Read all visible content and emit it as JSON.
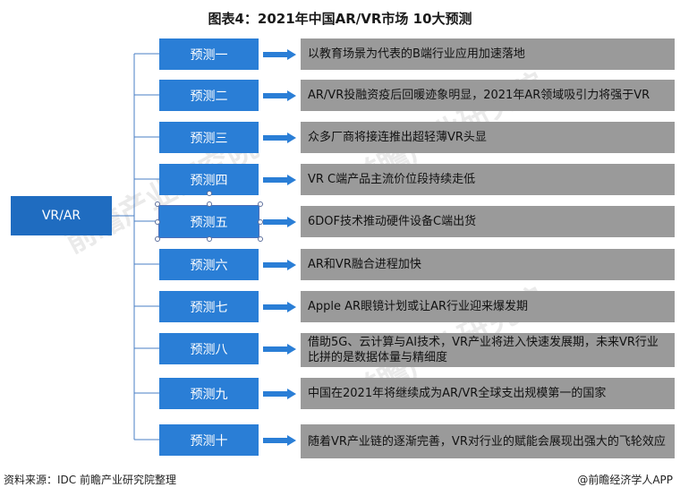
{
  "title": "图表4：2021年中国AR/VR市场 10大预测",
  "root": {
    "label": "VR/AR"
  },
  "predictions": [
    {
      "label": "预测一",
      "text": "以教育场景为代表的B端行业应用加速落地"
    },
    {
      "label": "预测二",
      "text": "AR/VR投融资疫后回暖迹象明显，2021年AR领域吸引力将强于VR"
    },
    {
      "label": "预测三",
      "text": "众多厂商将接连推出超轻薄VR头显"
    },
    {
      "label": "预测四",
      "text": "VR C端产品主流价位段持续走低"
    },
    {
      "label": "预测五",
      "text": "6DOF技术推动硬件设备C端出货"
    },
    {
      "label": "预测六",
      "text": "AR和VR融合进程加快"
    },
    {
      "label": "预测七",
      "text": "Apple AR眼镜计划或让AR行业迎来爆发期"
    },
    {
      "label": "预测八",
      "text": "借助5G、云计算与AI技术，VR产业将进入快速发展期，未来VR行业比拼的是数据体量与精细度"
    },
    {
      "label": "预测九",
      "text": "中国在2021年将继续成为AR/VR全球支出规模第一的国家"
    },
    {
      "label": "预测十",
      "text": "随着VR产业链的逐渐完善，VR对行业的赋能会展现出强大的飞轮效应"
    }
  ],
  "footer": {
    "source": "资料来源：IDC 前瞻产业研究院整理",
    "brand": "@前瞻经济学人APP"
  },
  "watermark": "前瞻产业研究院",
  "colors": {
    "root_fill": "#1f6cc0",
    "prediction_fill": "#2a7ed6",
    "description_fill": "#9a9a9a",
    "arrow_fill": "#2a7ed6",
    "connector": "#4a7fc4"
  }
}
